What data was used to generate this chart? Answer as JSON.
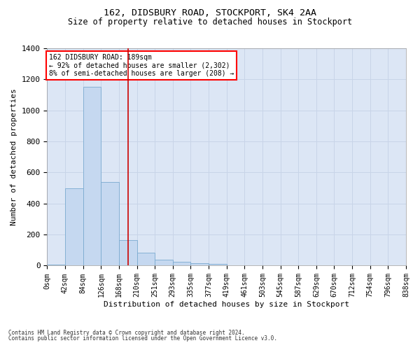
{
  "title1": "162, DIDSBURY ROAD, STOCKPORT, SK4 2AA",
  "title2": "Size of property relative to detached houses in Stockport",
  "xlabel": "Distribution of detached houses by size in Stockport",
  "ylabel": "Number of detached properties",
  "footer1": "Contains HM Land Registry data © Crown copyright and database right 2024.",
  "footer2": "Contains public sector information licensed under the Open Government Licence v3.0.",
  "bar_color": "#c5d8f0",
  "bar_edge_color": "#7aaad0",
  "grid_color": "#c8d4e8",
  "background_color": "#dce6f5",
  "annotation_text": "162 DIDSBURY ROAD: 189sqm\n← 92% of detached houses are smaller (2,302)\n8% of semi-detached houses are larger (208) →",
  "annotation_box_color": "white",
  "annotation_box_edge": "red",
  "vline_x": 189,
  "vline_color": "#cc0000",
  "categories": [
    "0sqm",
    "42sqm",
    "84sqm",
    "126sqm",
    "168sqm",
    "210sqm",
    "251sqm",
    "293sqm",
    "335sqm",
    "377sqm",
    "419sqm",
    "461sqm",
    "503sqm",
    "545sqm",
    "587sqm",
    "629sqm",
    "670sqm",
    "712sqm",
    "754sqm",
    "796sqm",
    "838sqm"
  ],
  "bin_left_edges": [
    0,
    42,
    84,
    126,
    168,
    210,
    251,
    293,
    335,
    377,
    419,
    461,
    503,
    545,
    587,
    629,
    670,
    712,
    754,
    796
  ],
  "bin_width": 42,
  "bar_heights": [
    5,
    500,
    1150,
    540,
    165,
    85,
    40,
    25,
    15,
    10,
    0,
    0,
    0,
    0,
    0,
    0,
    0,
    0,
    0,
    0
  ],
  "ylim": [
    0,
    1400
  ],
  "xlim_max": 838,
  "yticks": [
    0,
    200,
    400,
    600,
    800,
    1000,
    1200,
    1400
  ]
}
